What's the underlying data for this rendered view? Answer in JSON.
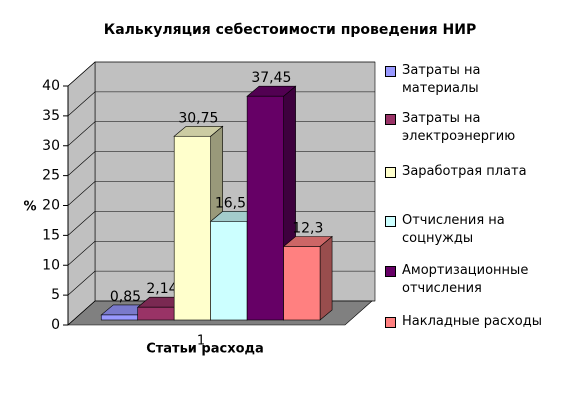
{
  "chart_data": {
    "type": "bar",
    "title": "Калькуляция себестоимости проведения НИР",
    "xlabel": "Статьи расхода",
    "ylabel": "%",
    "categories": [
      "1"
    ],
    "series": [
      {
        "name": "Затраты на материалы",
        "color": "#9999ff",
        "values": [
          0.85
        ],
        "value_labels": [
          "0,85"
        ]
      },
      {
        "name": "Затраты на электроэнергию",
        "color": "#993366",
        "values": [
          2.14
        ],
        "value_labels": [
          "2,14"
        ]
      },
      {
        "name": "Заработрая плата",
        "color": "#ffffcc",
        "values": [
          30.75
        ],
        "value_labels": [
          "30,75"
        ]
      },
      {
        "name": "Отчисления на соцнужды",
        "color": "#ccffff",
        "values": [
          16.51
        ],
        "value_labels": [
          "16,51"
        ]
      },
      {
        "name": "Амортизационные отчисления",
        "color": "#660066",
        "values": [
          37.45
        ],
        "value_labels": [
          "37,45"
        ]
      },
      {
        "name": "Накладные расходы",
        "color": "#ff8080",
        "values": [
          12.3
        ],
        "value_labels": [
          "12,3"
        ]
      }
    ],
    "ylim": [
      0,
      40
    ],
    "yticks": [
      0,
      5,
      10,
      15,
      20,
      25,
      30,
      35,
      40
    ],
    "grid": true,
    "legend": "right"
  }
}
